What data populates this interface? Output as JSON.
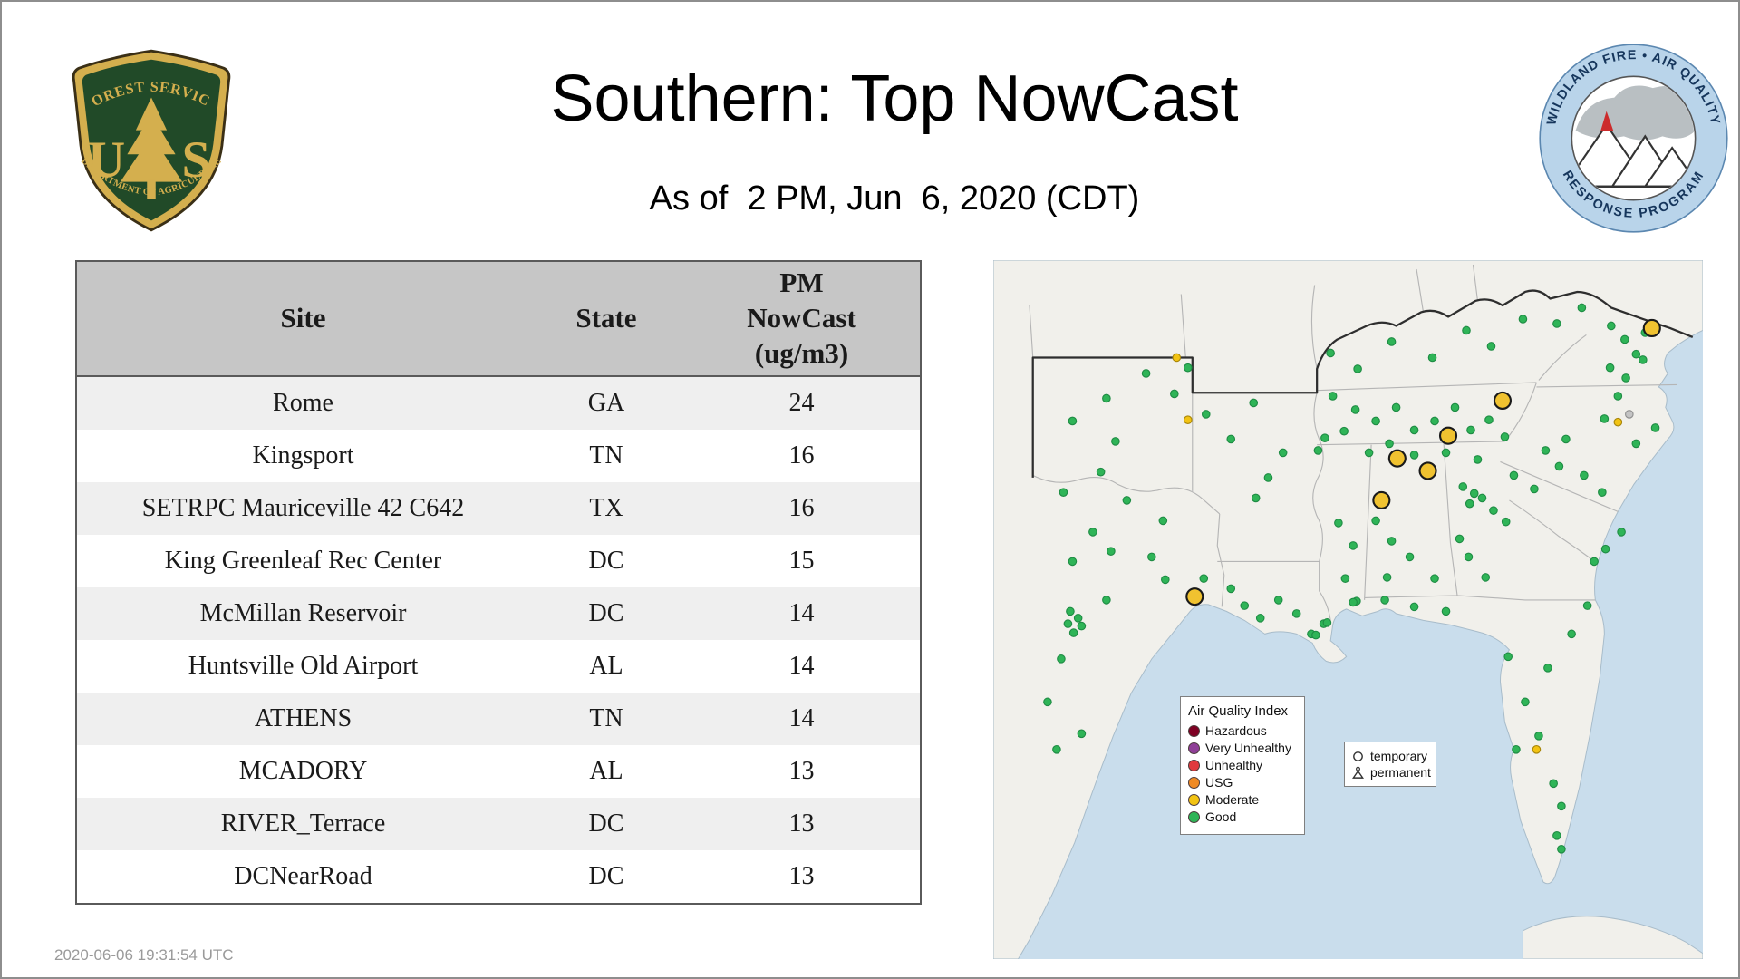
{
  "page": {
    "title": "Southern: Top NowCast",
    "subtitle": "As of  2 PM, Jun  6, 2020 (CDT)",
    "timestamp": "2020-06-06 19:31:54 UTC"
  },
  "logos": {
    "forest_service": {
      "arc_top": "FOREST SERVICE",
      "letter_left": "U",
      "letter_right": "S",
      "arc_bottom": "DEPARTMENT OF AGRICULTURE"
    },
    "response_program": {
      "arc_top": "WILDLAND FIRE • AIR QUALITY",
      "arc_bottom": "RESPONSE PROGRAM"
    }
  },
  "table": {
    "headers": [
      "Site",
      "State",
      "PM NowCast (ug/m3)"
    ],
    "rows": [
      {
        "site": "Rome",
        "state": "GA",
        "value": "24"
      },
      {
        "site": "Kingsport",
        "state": "TN",
        "value": "16"
      },
      {
        "site": "SETRPC Mauriceville 42 C642",
        "state": "TX",
        "value": "16"
      },
      {
        "site": "King Greenleaf Rec Center",
        "state": "DC",
        "value": "15"
      },
      {
        "site": "McMillan Reservoir",
        "state": "DC",
        "value": "14"
      },
      {
        "site": "Huntsville Old Airport",
        "state": "AL",
        "value": "14"
      },
      {
        "site": "ATHENS",
        "state": "TN",
        "value": "14"
      },
      {
        "site": "MCADORY",
        "state": "AL",
        "value": "13"
      },
      {
        "site": "RIVER_Terrace",
        "state": "DC",
        "value": "13"
      },
      {
        "site": "DCNearRoad",
        "state": "DC",
        "value": "13"
      }
    ]
  },
  "map": {
    "legend": {
      "title": "Air Quality Index",
      "items": [
        {
          "label": "Hazardous",
          "color": "#7e0023"
        },
        {
          "label": "Very Unhealthy",
          "color": "#8f3f97"
        },
        {
          "label": "Unhealthy",
          "color": "#e03a3e"
        },
        {
          "label": "USG",
          "color": "#f08a24"
        },
        {
          "label": "Moderate",
          "color": "#f2c313"
        },
        {
          "label": "Good",
          "color": "#2fb457"
        }
      ]
    },
    "marker_legend": {
      "temporary": "temporary",
      "permanent": "permanent"
    },
    "colors": {
      "water": "#c9ddec",
      "land": "#f1f0eb",
      "good": "#2fb457",
      "moderate": "#f2c313",
      "unknown": "#c4c4c4",
      "temporary_moderate": "#f0c230"
    },
    "monitors": {
      "good": [
        [
          100,
          122
        ],
        [
          70,
          142
        ],
        [
          108,
          160
        ],
        [
          95,
          187
        ],
        [
          62,
          205
        ],
        [
          118,
          212
        ],
        [
          88,
          240
        ],
        [
          104,
          257
        ],
        [
          70,
          266
        ],
        [
          100,
          300
        ],
        [
          68,
          310
        ],
        [
          75,
          316
        ],
        [
          66,
          321
        ],
        [
          78,
          323
        ],
        [
          71,
          329
        ],
        [
          60,
          352
        ],
        [
          48,
          390
        ],
        [
          78,
          418
        ],
        [
          56,
          432
        ],
        [
          140,
          262
        ],
        [
          152,
          282
        ],
        [
          186,
          281
        ],
        [
          150,
          230
        ],
        [
          135,
          100
        ],
        [
          160,
          118
        ],
        [
          188,
          136
        ],
        [
          210,
          158
        ],
        [
          230,
          126
        ],
        [
          172,
          95
        ],
        [
          243,
          192
        ],
        [
          256,
          170
        ],
        [
          232,
          210
        ],
        [
          287,
          168
        ],
        [
          293,
          157
        ],
        [
          222,
          305
        ],
        [
          236,
          316
        ],
        [
          252,
          300
        ],
        [
          268,
          312
        ],
        [
          281,
          330
        ],
        [
          292,
          321
        ],
        [
          210,
          290
        ],
        [
          305,
          232
        ],
        [
          318,
          252
        ],
        [
          311,
          281
        ],
        [
          321,
          301
        ],
        [
          298,
          82
        ],
        [
          322,
          96
        ],
        [
          352,
          72
        ],
        [
          388,
          86
        ],
        [
          418,
          62
        ],
        [
          440,
          76
        ],
        [
          468,
          52
        ],
        [
          498,
          56
        ],
        [
          520,
          42
        ],
        [
          300,
          120
        ],
        [
          320,
          132
        ],
        [
          338,
          142
        ],
        [
          356,
          130
        ],
        [
          372,
          150
        ],
        [
          390,
          142
        ],
        [
          408,
          130
        ],
        [
          422,
          150
        ],
        [
          438,
          141
        ],
        [
          452,
          156
        ],
        [
          350,
          162
        ],
        [
          332,
          170
        ],
        [
          372,
          172
        ],
        [
          400,
          170
        ],
        [
          428,
          176
        ],
        [
          310,
          151
        ],
        [
          338,
          230
        ],
        [
          352,
          248
        ],
        [
          368,
          262
        ],
        [
          348,
          280
        ],
        [
          390,
          281
        ],
        [
          415,
          200
        ],
        [
          425,
          206
        ],
        [
          421,
          215
        ],
        [
          432,
          210
        ],
        [
          442,
          221
        ],
        [
          453,
          231
        ],
        [
          460,
          190
        ],
        [
          478,
          202
        ],
        [
          412,
          246
        ],
        [
          420,
          262
        ],
        [
          435,
          280
        ],
        [
          500,
          182
        ],
        [
          488,
          168
        ],
        [
          506,
          158
        ],
        [
          522,
          190
        ],
        [
          538,
          205
        ],
        [
          540,
          140
        ],
        [
          545,
          95
        ],
        [
          559,
          104
        ],
        [
          574,
          88
        ],
        [
          552,
          120
        ],
        [
          585,
          148
        ],
        [
          568,
          162
        ],
        [
          555,
          240
        ],
        [
          541,
          255
        ],
        [
          531,
          266
        ],
        [
          546,
          58
        ],
        [
          558,
          70
        ],
        [
          568,
          83
        ],
        [
          576,
          64
        ],
        [
          525,
          305
        ],
        [
          511,
          330
        ],
        [
          490,
          360
        ],
        [
          470,
          390
        ],
        [
          482,
          420
        ],
        [
          462,
          432
        ],
        [
          495,
          462
        ],
        [
          502,
          482
        ],
        [
          498,
          508
        ],
        [
          502,
          520
        ],
        [
          455,
          350
        ],
        [
          400,
          310
        ],
        [
          372,
          306
        ],
        [
          346,
          300
        ],
        [
          318,
          302
        ],
        [
          295,
          320
        ],
        [
          285,
          331
        ]
      ],
      "moderate": [
        [
          172,
          141
        ],
        [
          552,
          143
        ],
        [
          480,
          432
        ],
        [
          162,
          86
        ]
      ],
      "unknown": [
        [
          562,
          136
        ]
      ],
      "temporary_moderate": [
        [
          582,
          60
        ],
        [
          450,
          124
        ],
        [
          402,
          155
        ],
        [
          357,
          175
        ],
        [
          384,
          186
        ],
        [
          343,
          212
        ],
        [
          178,
          297
        ]
      ]
    }
  }
}
